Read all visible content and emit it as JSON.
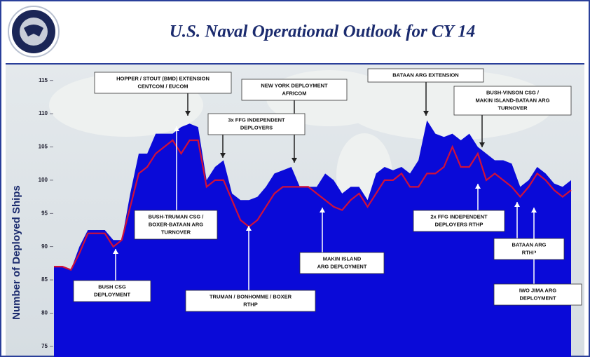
{
  "chart_data": {
    "type": "area",
    "title": "U.S. Naval Operational Outlook for CY 14",
    "ylabel": "Number of Deployed Ships",
    "ylim": [
      73.4,
      117.4
    ],
    "yticks": [
      75,
      80,
      85,
      90,
      95,
      100,
      105,
      110,
      115
    ],
    "series": [
      {
        "color": "#0a0ad8",
        "values": [
          87,
          87,
          86.5,
          90,
          92.5,
          92.5,
          92.5,
          91,
          91,
          98,
          104,
          104,
          107,
          107,
          107,
          108,
          108.5,
          108,
          100,
          102,
          103,
          98,
          97,
          97,
          97.5,
          99,
          101,
          101.5,
          102,
          99,
          99,
          99,
          101,
          100,
          98,
          99,
          99,
          97,
          101,
          102,
          101.5,
          102,
          101,
          103,
          109,
          107,
          106.5,
          107,
          106,
          107,
          105,
          104,
          103,
          103,
          102.5,
          99,
          100,
          102,
          101,
          99.5,
          99,
          100
        ]
      },
      {
        "color": "#d0103a",
        "values": [
          87,
          87,
          86.5,
          89,
          92,
          92,
          92,
          90,
          91,
          96,
          101,
          102,
          104,
          105,
          106,
          104,
          106,
          106,
          99,
          100,
          100,
          97,
          94,
          93,
          94,
          96,
          98,
          99,
          99,
          99,
          99,
          98,
          97,
          96,
          95.5,
          97,
          98,
          96,
          98,
          100,
          100,
          101,
          99,
          99,
          101,
          101,
          102,
          105,
          102,
          102,
          104,
          100,
          101,
          100,
          99,
          97.5,
          99,
          101,
          100,
          98.5,
          97.5,
          98.5
        ]
      }
    ],
    "annotations": [
      {
        "lines": [
          "HOPPER / STOUT (BMD) EXTENSION",
          "CENTCOM / EUCOM"
        ]
      },
      {
        "lines": [
          "NEW YORK DEPLOYMENT",
          "AFRICOM"
        ]
      },
      {
        "lines": [
          "BATAAN ARG EXTENSION"
        ]
      },
      {
        "lines": [
          "3x FFG INDEPENDENT",
          "DEPLOYERS"
        ]
      },
      {
        "lines": [
          "BUSH-VINSON CSG /",
          "MAKIN ISLAND-BATAAN ARG",
          "TURNOVER"
        ]
      },
      {
        "lines": [
          "BUSH-TRUMAN CSG /",
          "BOXER-BATAAN ARG",
          "TURNOVER"
        ]
      },
      {
        "lines": [
          "2x FFG INDEPENDENT",
          "DEPLOYERS RTHP"
        ]
      },
      {
        "lines": [
          "MAKIN ISLAND",
          "ARG DEPLOYMENT"
        ]
      },
      {
        "lines": [
          "BATAAN ARG",
          "RTHP"
        ]
      },
      {
        "lines": [
          "BUSH CSG",
          "DEPLOYMENT"
        ]
      },
      {
        "lines": [
          "TRUMAN / BONHOMME / BOXER",
          "RTHP"
        ]
      },
      {
        "lines": [
          "IWO JIMA ARG",
          "DEPLOYMENT"
        ]
      }
    ]
  }
}
